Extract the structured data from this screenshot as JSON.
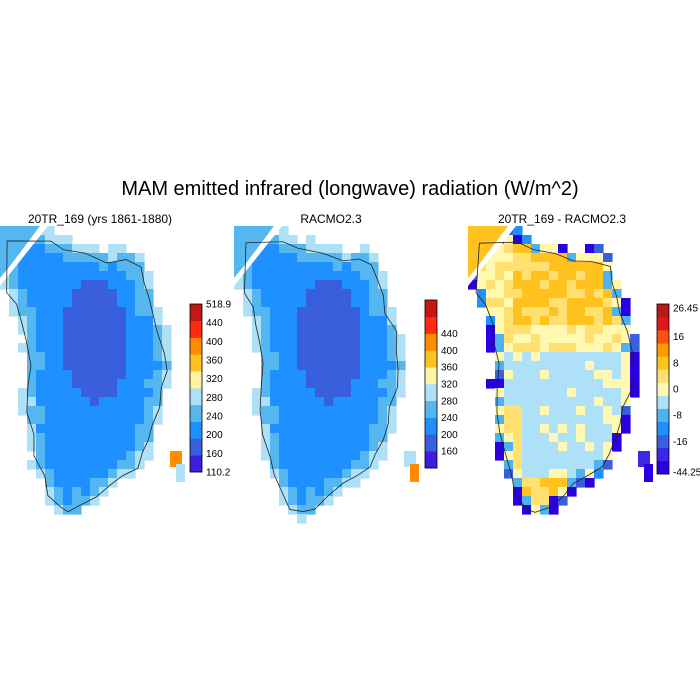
{
  "figure": {
    "title": "MAM emitted infrared (longwave) radiation (W/m^2)"
  },
  "panels": [
    {
      "title": "20TR_169 (yrs 1861-1880)",
      "field": "model",
      "colorbar": {
        "labels": [
          "110.2",
          "160",
          "200",
          "240",
          "280",
          "320",
          "360",
          "400",
          "440",
          "518.9"
        ],
        "colors": [
          "#3b1ee0",
          "#3a5fdc",
          "#1e90ff",
          "#55b7f0",
          "#aee0f8",
          "#fff5a0",
          "#ffc21e",
          "#ff8c00",
          "#ff2a10",
          "#c41818"
        ]
      }
    },
    {
      "title": "RACMO2.3",
      "field": "obs",
      "colorbar": {
        "labels": [
          "160",
          "200",
          "240",
          "280",
          "320",
          "360",
          "400",
          "440"
        ],
        "colors": [
          "#3b1ee0",
          "#3a5fdc",
          "#1e90ff",
          "#55b7f0",
          "#aee0f8",
          "#fff5a0",
          "#ffc21e",
          "#ff8c00",
          "#ff2a10",
          "#c41818"
        ]
      }
    },
    {
      "title": "20TR_169 - RACMO2.3",
      "field": "diff",
      "colorbar": {
        "labels": [
          "-44.25",
          "-16",
          "-8",
          "0",
          "8",
          "16",
          "26.45"
        ],
        "label_slots": [
          0,
          2,
          4,
          6,
          8,
          10,
          12
        ],
        "colors": [
          "#2a00e0",
          "#3a28e6",
          "#3a5fdc",
          "#1e90ff",
          "#4fb2f0",
          "#aee0f8",
          "#fff8b0",
          "#ffe070",
          "#ffc21e",
          "#ff9a00",
          "#ff5010",
          "#e01818",
          "#b81818"
        ]
      }
    }
  ]
}
